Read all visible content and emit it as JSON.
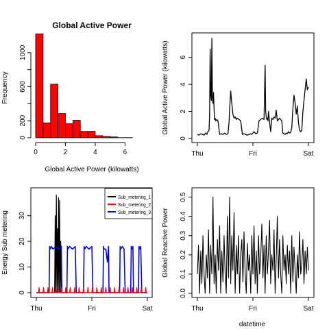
{
  "chart_data": [
    {
      "type": "bar",
      "title": "Global Active Power",
      "xlabel": "Global Active Power (kilowatts)",
      "ylabel": "Frequency",
      "xlim": [
        0,
        7.5
      ],
      "ylim": [
        0,
        1200
      ],
      "x_ticks": [
        "0",
        "2",
        "4",
        "6"
      ],
      "y_ticks": [
        "0",
        "200",
        "600",
        "1000"
      ],
      "bar_color": "#ff0000",
      "bin_edges": [
        0,
        0.5,
        1,
        1.5,
        2,
        2.5,
        3,
        3.5,
        4,
        4.5,
        5,
        5.5,
        6,
        6.5
      ],
      "values": [
        1220,
        175,
        630,
        285,
        165,
        205,
        75,
        75,
        25,
        15,
        10,
        2,
        2
      ]
    },
    {
      "type": "line",
      "xlabel": "",
      "ylabel": "Global Active Power (kilowatts)",
      "x_ticks": [
        "Thu",
        "Fri",
        "Sat"
      ],
      "y_ticks": [
        "0",
        "2",
        "4",
        "6"
      ],
      "ylim": [
        0,
        7.5
      ],
      "line_color": "#000000",
      "series": [
        {
          "x": [
            0.0,
            0.03,
            0.06,
            0.09,
            0.12,
            0.15,
            0.17,
            0.19,
            0.21,
            0.22,
            0.23,
            0.24,
            0.25,
            0.26,
            0.27,
            0.28,
            0.29,
            0.3,
            0.31,
            0.32,
            0.33,
            0.35,
            0.37,
            0.4,
            0.43,
            0.46,
            0.49,
            0.52,
            0.55,
            0.57,
            0.58,
            0.59,
            0.6,
            0.61,
            0.62,
            0.63,
            0.64,
            0.66,
            0.68,
            0.7,
            0.72,
            0.75,
            0.78,
            0.81,
            0.84,
            0.87,
            0.9,
            0.93,
            0.96,
            0.98,
            1.0,
            1.02,
            1.05,
            1.08,
            1.11,
            1.14,
            1.17,
            1.2,
            1.22,
            1.23,
            1.24,
            1.25,
            1.26,
            1.27,
            1.28,
            1.3,
            1.32,
            1.34,
            1.36,
            1.38,
            1.4,
            1.42,
            1.44,
            1.46,
            1.48,
            1.5,
            1.52,
            1.54,
            1.56,
            1.58,
            1.6,
            1.62,
            1.64,
            1.66,
            1.68,
            1.7,
            1.72,
            1.74,
            1.76,
            1.78,
            1.8,
            1.82,
            1.84,
            1.86,
            1.88,
            1.9,
            1.92,
            1.94,
            1.96,
            1.98,
            2.0
          ],
          "y": [
            0.3,
            0.25,
            0.35,
            0.3,
            0.25,
            0.4,
            0.3,
            0.5,
            0.6,
            1.8,
            6.6,
            3.2,
            2.8,
            7.4,
            3.0,
            2.6,
            3.4,
            2.2,
            1.4,
            1.5,
            1.3,
            1.4,
            1.3,
            0.3,
            0.35,
            0.3,
            0.4,
            0.3,
            0.35,
            1.2,
            2.2,
            2.8,
            3.5,
            3.0,
            2.6,
            2.2,
            1.8,
            1.5,
            1.6,
            1.4,
            1.5,
            1.4,
            1.3,
            0.3,
            0.35,
            0.3,
            0.25,
            0.3,
            0.35,
            0.3,
            0.4,
            0.5,
            0.35,
            0.4,
            1.3,
            1.4,
            1.5,
            1.4,
            5.4,
            2.0,
            1.6,
            1.4,
            1.5,
            1.3,
            2.0,
            1.2,
            0.5,
            1.5,
            1.4,
            1.6,
            1.5,
            2.1,
            1.3,
            1.4,
            1.5,
            1.4,
            1.3,
            0.4,
            0.35,
            0.3,
            0.4,
            0.35,
            0.5,
            0.4,
            0.45,
            0.8,
            2.2,
            3.2,
            2.6,
            1.8,
            2.4,
            1.2,
            0.6,
            0.5,
            0.6,
            2.0,
            2.8,
            3.6,
            4.4,
            3.6,
            3.8
          ]
        }
      ]
    },
    {
      "type": "line",
      "xlabel": "",
      "ylabel": "Energy Sub metering",
      "x_ticks": [
        "Thu",
        "Fri",
        "Sat"
      ],
      "y_ticks": [
        "0",
        "10",
        "20",
        "30"
      ],
      "ylim": [
        0,
        39
      ],
      "legend_position": "top-right",
      "series": [
        {
          "name": "Sub_metering_1",
          "color": "#000000",
          "x": [
            0.0,
            0.33,
            0.34,
            0.35,
            0.36,
            0.37,
            0.38,
            0.39,
            0.4,
            0.41,
            0.42,
            0.43,
            0.44,
            0.45,
            0.46,
            2.0
          ],
          "y": [
            0,
            0,
            30,
            0,
            38,
            0,
            25,
            0,
            37,
            0,
            36,
            0,
            20,
            0,
            0,
            0
          ]
        },
        {
          "name": "Sub_metering_2",
          "color": "#ff0000",
          "x": [
            0.0,
            0.04,
            0.05,
            0.06,
            0.12,
            0.13,
            0.14,
            0.2,
            0.21,
            0.22,
            0.28,
            0.29,
            0.3,
            0.36,
            0.37,
            0.38,
            0.44,
            0.45,
            0.46,
            0.52,
            0.53,
            0.54,
            0.6,
            0.61,
            0.62,
            0.68,
            0.69,
            0.7,
            0.76,
            0.77,
            0.78,
            0.84,
            0.85,
            0.86,
            0.92,
            0.93,
            0.94,
            1.0,
            1.01,
            1.02,
            1.08,
            1.09,
            1.1,
            1.16,
            1.17,
            1.18,
            1.24,
            1.25,
            1.26,
            1.32,
            1.33,
            1.34,
            1.4,
            1.41,
            1.42,
            1.48,
            1.49,
            1.5,
            1.56,
            1.57,
            1.58,
            1.64,
            1.65,
            1.66,
            1.72,
            1.73,
            1.74,
            1.8,
            1.81,
            1.82,
            1.88,
            1.89,
            1.9,
            1.96,
            1.97,
            1.98,
            2.0
          ],
          "y": [
            0,
            0,
            2,
            0,
            0,
            2,
            0,
            0,
            2,
            0,
            0,
            2,
            0,
            0,
            2,
            0,
            0,
            2,
            0,
            0,
            2,
            0,
            0,
            2,
            0,
            0,
            2,
            0,
            0,
            2,
            0,
            0,
            2,
            0,
            0,
            2,
            0,
            0,
            2,
            0,
            0,
            2,
            0,
            0,
            2,
            0,
            0,
            2,
            0,
            0,
            2,
            0,
            0,
            2,
            0,
            0,
            2,
            0,
            0,
            2,
            0,
            0,
            2,
            0,
            0,
            2,
            0,
            0,
            2,
            0,
            0,
            2,
            0,
            0,
            2,
            0,
            0
          ]
        },
        {
          "name": "Sub_metering_3",
          "color": "#0000ff",
          "x": [
            0.0,
            0.23,
            0.24,
            0.25,
            0.27,
            0.3,
            0.35,
            0.4,
            0.45,
            0.46,
            0.47,
            0.55,
            0.56,
            0.57,
            0.6,
            0.65,
            0.7,
            0.72,
            0.73,
            0.85,
            0.86,
            0.87,
            0.9,
            0.95,
            1.0,
            1.02,
            1.03,
            1.2,
            1.21,
            1.22,
            1.25,
            1.28,
            1.3,
            1.31,
            1.32,
            1.5,
            1.51,
            1.52,
            1.55,
            1.58,
            1.6,
            1.62,
            1.63,
            1.7,
            1.71,
            1.72,
            1.74,
            1.75,
            1.76,
            1.77,
            1.84,
            1.85,
            1.86,
            1.88,
            1.9,
            1.91,
            1.92,
            2.0
          ],
          "y": [
            0,
            0,
            18,
            17,
            18,
            17,
            18,
            17,
            18,
            0,
            0,
            0,
            18,
            17,
            18,
            17,
            18,
            0,
            0,
            0,
            18,
            17,
            18,
            17,
            18,
            0,
            0,
            0,
            18,
            17,
            17,
            12,
            18,
            0,
            0,
            0,
            18,
            17,
            18,
            17,
            0,
            0,
            0,
            0,
            18,
            17,
            18,
            0,
            0,
            0,
            0,
            18,
            17,
            18,
            0,
            0,
            0,
            0
          ]
        }
      ]
    },
    {
      "type": "line",
      "xlabel": "datetime",
      "ylabel": "Global Reactive Power",
      "x_ticks": [
        "Thu",
        "Fri",
        "Sat"
      ],
      "y_ticks": [
        "0.0",
        "0.1",
        "0.2",
        "0.3",
        "0.4",
        "0.5"
      ],
      "ylim": [
        0,
        0.52
      ],
      "line_color": "#000000",
      "series": [
        {
          "x": [
            0.0,
            0.02,
            0.04,
            0.06,
            0.08,
            0.1,
            0.12,
            0.14,
            0.16,
            0.18,
            0.2,
            0.22,
            0.24,
            0.26,
            0.28,
            0.3,
            0.32,
            0.34,
            0.36,
            0.38,
            0.4,
            0.42,
            0.44,
            0.46,
            0.48,
            0.5,
            0.52,
            0.54,
            0.56,
            0.58,
            0.6,
            0.62,
            0.64,
            0.66,
            0.68,
            0.7,
            0.72,
            0.74,
            0.76,
            0.78,
            0.8,
            0.82,
            0.84,
            0.86,
            0.88,
            0.9,
            0.92,
            0.94,
            0.96,
            0.98,
            1.0,
            1.02,
            1.04,
            1.06,
            1.08,
            1.1,
            1.12,
            1.14,
            1.16,
            1.18,
            1.2,
            1.22,
            1.24,
            1.26,
            1.28,
            1.3,
            1.32,
            1.34,
            1.36,
            1.38,
            1.4,
            1.42,
            1.44,
            1.46,
            1.48,
            1.5,
            1.52,
            1.54,
            1.56,
            1.58,
            1.6,
            1.62,
            1.64,
            1.66,
            1.68,
            1.7,
            1.72,
            1.74,
            1.76,
            1.78,
            1.8,
            1.82,
            1.84,
            1.86,
            1.88,
            1.9,
            1.92,
            1.94,
            1.96,
            1.98,
            2.0
          ],
          "y": [
            0.1,
            0.25,
            0.0,
            0.22,
            0.05,
            0.3,
            0.1,
            0.0,
            0.2,
            0.08,
            0.33,
            0.0,
            0.25,
            0.1,
            0.5,
            0.05,
            0.2,
            0.0,
            0.28,
            0.12,
            0.35,
            0.0,
            0.22,
            0.06,
            0.3,
            0.1,
            0.0,
            0.4,
            0.08,
            0.5,
            0.05,
            0.3,
            0.12,
            0.42,
            0.0,
            0.25,
            0.1,
            0.3,
            0.0,
            0.2,
            0.28,
            0.06,
            0.32,
            0.1,
            0.0,
            0.26,
            0.12,
            0.2,
            0.0,
            0.3,
            0.1,
            0.35,
            0.05,
            0.22,
            0.0,
            0.3,
            0.1,
            0.18,
            0.36,
            0.08,
            0.25,
            0.0,
            0.3,
            0.1,
            0.22,
            0.38,
            0.05,
            0.2,
            0.12,
            0.33,
            0.0,
            0.18,
            0.4,
            0.08,
            0.28,
            0.1,
            0.0,
            0.3,
            0.12,
            0.2,
            0.05,
            0.25,
            0.1,
            0.22,
            0.0,
            0.3,
            0.06,
            0.24,
            0.12,
            0.0,
            0.2,
            0.08,
            0.32,
            0.1,
            0.15,
            0.28,
            0.05,
            0.22,
            0.1,
            0.24,
            0.12
          ]
        }
      ]
    }
  ]
}
